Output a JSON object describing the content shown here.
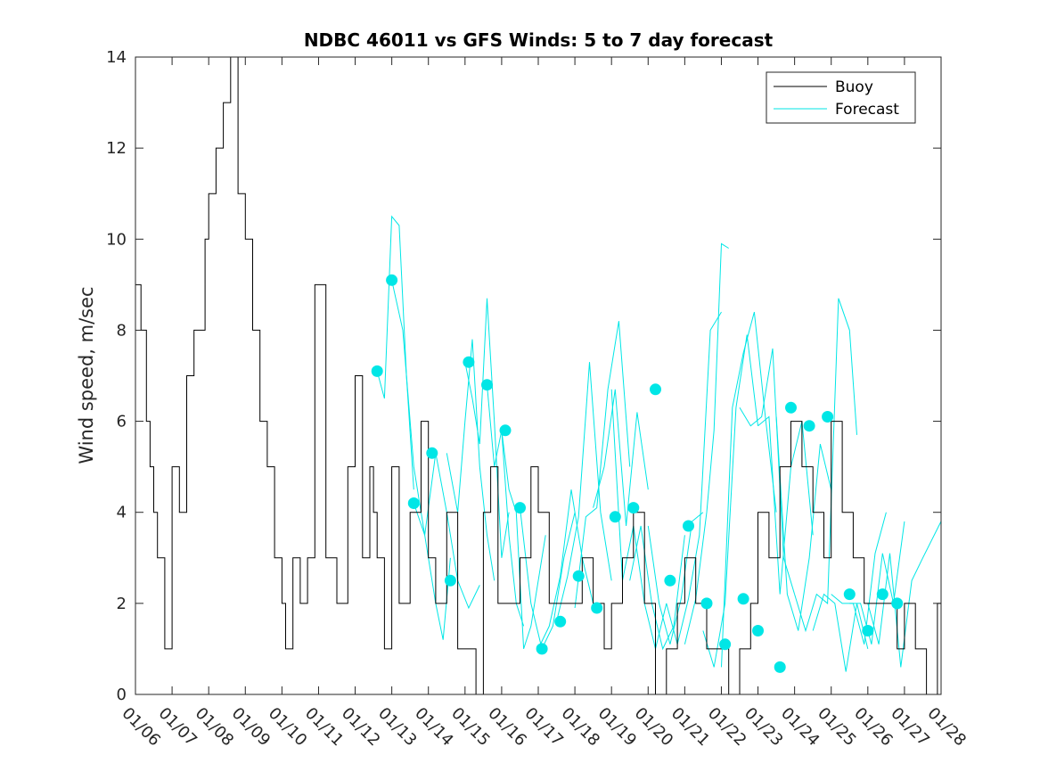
{
  "chart_data": {
    "type": "line",
    "title": "NDBC 46011 vs GFS Winds: 5 to 7 day forecast",
    "xlabel": "",
    "ylabel": "Wind speed, m/sec",
    "xlim": [
      0,
      22
    ],
    "ylim": [
      0,
      14
    ],
    "yticks": [
      0,
      2,
      4,
      6,
      8,
      10,
      12,
      14
    ],
    "categories": [
      "01/06",
      "01/07",
      "01/08",
      "01/09",
      "01/10",
      "01/11",
      "01/12",
      "01/13",
      "01/14",
      "01/15",
      "01/16",
      "01/17",
      "01/18",
      "01/19",
      "01/20",
      "01/21",
      "01/22",
      "01/23",
      "01/24",
      "01/25",
      "01/26",
      "01/27",
      "01/28"
    ],
    "legend": {
      "position": "top-right",
      "entries": [
        "Buoy",
        "Forecast"
      ]
    },
    "colors": {
      "buoy": "#000000",
      "forecast": "#00e6e6",
      "markers": "#00e6e6",
      "axes": "#262626"
    },
    "series": [
      {
        "name": "Buoy",
        "type": "step",
        "x": [
          0.0,
          0.15,
          0.3,
          0.4,
          0.5,
          0.6,
          0.8,
          1.0,
          1.2,
          1.4,
          1.6,
          1.9,
          2.0,
          2.2,
          2.4,
          2.6,
          2.8,
          3.0,
          3.2,
          3.4,
          3.6,
          3.8,
          4.0,
          4.1,
          4.3,
          4.5,
          4.7,
          4.9,
          5.2,
          5.5,
          5.8,
          6.0,
          6.2,
          6.4,
          6.5,
          6.6,
          6.8,
          7.0,
          7.2,
          7.5,
          7.8,
          8.0,
          8.2,
          8.5,
          8.8,
          9.0,
          9.3,
          9.5,
          9.7,
          9.9,
          10.2,
          10.5,
          10.8,
          11.0,
          11.3,
          11.6,
          11.9,
          12.2,
          12.5,
          12.8,
          13.0,
          13.3,
          13.6,
          13.9,
          14.2,
          14.5,
          14.8,
          15.0,
          15.3,
          15.6,
          15.9,
          16.2,
          16.5,
          16.8,
          17.0,
          17.3,
          17.6,
          17.9,
          18.2,
          18.5,
          18.8,
          19.0,
          19.3,
          19.6,
          19.9,
          20.2,
          20.5,
          20.8,
          21.0,
          21.3,
          21.6,
          21.9
        ],
        "y": [
          9,
          8,
          6,
          5,
          4,
          3,
          1,
          5,
          4,
          7,
          8,
          10,
          11,
          12,
          13,
          14,
          11,
          10,
          8,
          6,
          5,
          3,
          2,
          1,
          3,
          2,
          3,
          9,
          3,
          2,
          5,
          7,
          3,
          5,
          4,
          3,
          1,
          5,
          2,
          4,
          6,
          3,
          2,
          4,
          1,
          1,
          0,
          4,
          5,
          2,
          2,
          3,
          5,
          4,
          2,
          2,
          2,
          3,
          2,
          1,
          2,
          3,
          4,
          2,
          0,
          1,
          2,
          3,
          2,
          1,
          1,
          0,
          1,
          2,
          4,
          3,
          5,
          6,
          5,
          4,
          3,
          6,
          4,
          3,
          2,
          2,
          2,
          1,
          2,
          1,
          0,
          2
        ]
      },
      {
        "name": "Forecast",
        "type": "ensemble",
        "lines": [
          {
            "x": [
              6.6,
              6.8,
              7.0,
              7.2,
              7.4,
              7.6
            ],
            "y": [
              7.1,
              6.5,
              10.5,
              10.3,
              7.0,
              4.5
            ]
          },
          {
            "x": [
              7.0,
              7.3,
              7.6,
              7.9,
              8.2,
              8.4,
              8.6
            ],
            "y": [
              9.1,
              8.0,
              5.0,
              3.5,
              2.0,
              1.2,
              3.0
            ]
          },
          {
            "x": [
              7.6,
              7.9,
              8.2,
              8.5,
              8.8,
              9.1,
              9.4
            ],
            "y": [
              4.2,
              3.5,
              5.3,
              4.0,
              2.5,
              1.9,
              2.4
            ]
          },
          {
            "x": [
              8.5,
              8.8,
              9.0,
              9.2,
              9.4,
              9.6,
              9.8
            ],
            "y": [
              5.3,
              4.0,
              6.0,
              7.8,
              5.0,
              3.5,
              2.5
            ]
          },
          {
            "x": [
              9.0,
              9.2,
              9.4,
              9.6,
              9.8,
              10.0,
              10.2
            ],
            "y": [
              7.3,
              6.5,
              5.5,
              8.7,
              6.0,
              3.0,
              4.0
            ]
          },
          {
            "x": [
              9.6,
              9.8,
              10.0,
              10.2,
              10.4,
              10.6
            ],
            "y": [
              6.8,
              5.0,
              5.8,
              3.5,
              2.0,
              1.5
            ]
          },
          {
            "x": [
              10.0,
              10.2,
              10.4,
              10.6,
              10.8,
              11.0,
              11.2
            ],
            "y": [
              5.8,
              4.5,
              4.0,
              1.0,
              1.5,
              2.5,
              3.5
            ]
          },
          {
            "x": [
              10.5,
              10.8,
              11.1,
              11.4,
              11.7,
              12.0
            ],
            "y": [
              4.1,
              2.0,
              1.0,
              1.5,
              3.0,
              4.0
            ]
          },
          {
            "x": [
              11.0,
              11.3,
              11.6,
              11.9,
              12.2,
              12.5
            ],
            "y": [
              1.0,
              1.5,
              2.6,
              4.5,
              3.0,
              2.0
            ]
          },
          {
            "x": [
              11.5,
              11.8,
              12.1,
              12.4,
              12.7,
              13.0
            ],
            "y": [
              1.6,
              2.6,
              3.9,
              7.3,
              4.0,
              2.5
            ]
          },
          {
            "x": [
              12.0,
              12.3,
              12.6,
              12.9,
              13.2,
              13.5
            ],
            "y": [
              1.9,
              3.9,
              4.1,
              6.7,
              8.2,
              5.0
            ]
          },
          {
            "x": [
              12.5,
              12.8,
              13.1,
              13.4,
              13.7,
              14.0
            ],
            "y": [
              4.1,
              5.0,
              6.7,
              3.7,
              6.2,
              4.5
            ]
          },
          {
            "x": [
              13.0,
              13.3,
              13.6,
              13.9,
              14.2,
              14.5
            ],
            "y": [
              6.7,
              2.5,
              3.7,
              2.0,
              1.0,
              2.0
            ]
          },
          {
            "x": [
              13.5,
              13.8,
              14.1,
              14.4,
              14.7,
              15.0
            ],
            "y": [
              2.5,
              3.7,
              2.0,
              1.0,
              1.5,
              3.5
            ]
          },
          {
            "x": [
              14.0,
              14.3,
              14.6,
              14.9,
              15.2,
              15.5
            ],
            "y": [
              3.7,
              2.0,
              1.1,
              2.1,
              3.8,
              4.0
            ]
          },
          {
            "x": [
              14.5,
              14.8,
              15.1,
              15.4,
              15.7,
              16.0
            ],
            "y": [
              2.0,
              1.1,
              2.1,
              3.5,
              8.0,
              8.4
            ]
          },
          {
            "x": [
              15.0,
              15.3,
              15.6,
              15.8,
              16.0,
              16.2
            ],
            "y": [
              1.1,
              2.1,
              4.0,
              5.8,
              9.9,
              9.8
            ]
          },
          {
            "x": [
              15.5,
              15.8,
              16.1,
              16.4,
              16.7,
              17.0
            ],
            "y": [
              1.4,
              0.6,
              2.0,
              6.3,
              7.9,
              5.9
            ]
          },
          {
            "x": [
              16.0,
              16.3,
              16.6,
              16.9,
              17.2,
              17.5
            ],
            "y": [
              0.6,
              6.3,
              7.5,
              8.4,
              6.1,
              4.0
            ]
          },
          {
            "x": [
              16.5,
              16.8,
              17.1,
              17.4,
              17.7,
              18.0
            ],
            "y": [
              6.3,
              5.9,
              6.1,
              7.6,
              3.0,
              2.2
            ]
          },
          {
            "x": [
              17.0,
              17.3,
              17.6,
              17.9,
              18.2,
              18.5
            ],
            "y": [
              5.9,
              6.1,
              2.2,
              5.0,
              6.0,
              3.5
            ]
          },
          {
            "x": [
              17.5,
              17.8,
              18.1,
              18.4,
              18.7,
              19.0
            ],
            "y": [
              6.1,
              2.2,
              1.4,
              3.0,
              5.5,
              4.5
            ]
          },
          {
            "x": [
              18.0,
              18.3,
              18.6,
              18.9,
              19.2,
              19.5,
              19.7
            ],
            "y": [
              2.2,
              1.4,
              2.2,
              2.0,
              8.7,
              8.0,
              5.7
            ]
          },
          {
            "x": [
              18.5,
              18.8,
              19.1,
              19.4,
              19.7,
              20.0
            ],
            "y": [
              1.4,
              2.2,
              2.0,
              0.5,
              2.0,
              1.0
            ]
          },
          {
            "x": [
              19.0,
              19.3,
              19.6,
              19.9,
              20.2,
              20.5
            ],
            "y": [
              2.2,
              2.0,
              2.0,
              1.1,
              3.1,
              4.0
            ]
          },
          {
            "x": [
              19.5,
              19.8,
              20.1,
              20.4,
              20.7,
              21.0
            ],
            "y": [
              2.0,
              2.0,
              1.1,
              3.1,
              2.0,
              3.8
            ]
          },
          {
            "x": [
              20.0,
              20.3,
              20.6,
              20.9,
              21.2,
              21.5,
              22.0
            ],
            "y": [
              2.0,
              1.1,
              3.1,
              0.6,
              2.5,
              3.0,
              3.8
            ]
          }
        ],
        "markers": {
          "x": [
            6.6,
            7.0,
            7.6,
            8.1,
            8.6,
            9.1,
            9.6,
            10.1,
            10.5,
            11.1,
            11.6,
            12.1,
            12.6,
            13.1,
            13.6,
            14.2,
            14.6,
            15.1,
            15.6,
            16.1,
            16.6,
            17.0,
            17.6,
            17.9,
            18.4,
            18.9,
            19.5,
            20.0,
            20.4,
            20.8
          ],
          "y": [
            7.1,
            9.1,
            4.2,
            5.3,
            2.5,
            7.3,
            6.8,
            5.8,
            4.1,
            1.0,
            1.6,
            2.6,
            1.9,
            3.9,
            4.1,
            6.7,
            2.5,
            3.7,
            2.0,
            1.1,
            2.1,
            1.4,
            0.6,
            6.3,
            5.9,
            6.1,
            2.2,
            1.4,
            2.2,
            2.0
          ]
        }
      }
    ]
  }
}
